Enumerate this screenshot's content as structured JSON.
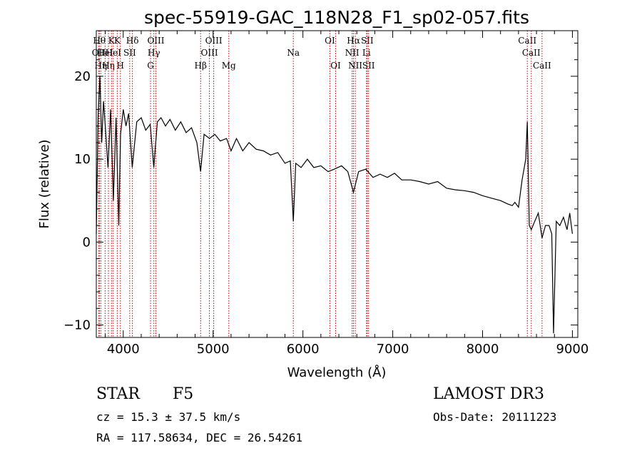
{
  "chart_data": {
    "type": "line",
    "title": "spec-55919-GAC_118N28_F1_sp02-057.fits",
    "xlabel": "Wavelength (Å)",
    "ylabel": "Flux (relative)",
    "xlim": [
      3700,
      9060
    ],
    "ylim": [
      -11.5,
      25.5
    ],
    "xticks": [
      4000,
      5000,
      6000,
      7000,
      8000,
      9000
    ],
    "xtick_labels": [
      "4000",
      "5000",
      "6000",
      "7000",
      "8000",
      "9000"
    ],
    "yticks": [
      -10,
      0,
      10,
      20
    ],
    "ytick_labels": [
      "−10",
      "0",
      "10",
      "20"
    ],
    "series": [
      {
        "name": "spectrum",
        "x": [
          3700,
          3720,
          3740,
          3760,
          3780,
          3800,
          3830,
          3860,
          3890,
          3920,
          3950,
          3970,
          4000,
          4030,
          4060,
          4100,
          4150,
          4200,
          4250,
          4300,
          4340,
          4380,
          4420,
          4470,
          4520,
          4580,
          4640,
          4700,
          4760,
          4820,
          4861,
          4900,
          4960,
          5020,
          5080,
          5150,
          5200,
          5260,
          5330,
          5400,
          5480,
          5560,
          5640,
          5720,
          5800,
          5860,
          5893,
          5920,
          5980,
          6050,
          6120,
          6200,
          6280,
          6350,
          6430,
          6500,
          6563,
          6620,
          6700,
          6780,
          6860,
          6940,
          7020,
          7100,
          7200,
          7300,
          7400,
          7500,
          7600,
          7700,
          7800,
          7900,
          8000,
          8100,
          8200,
          8280,
          8330,
          8360,
          8400,
          8440,
          8480,
          8498,
          8520,
          8542,
          8580,
          8620,
          8662,
          8700,
          8740,
          8770,
          8790,
          8820,
          8860,
          8900,
          8940,
          8970,
          9000
        ],
        "y": [
          1.0,
          15.0,
          20.0,
          12.0,
          17.0,
          14.0,
          9.0,
          16.0,
          5.0,
          15.0,
          2.0,
          13.0,
          16.0,
          14.0,
          15.5,
          9.0,
          14.5,
          15.0,
          13.5,
          14.2,
          9.0,
          14.5,
          15.0,
          14.0,
          14.8,
          13.5,
          14.5,
          13.2,
          13.8,
          12.0,
          8.5,
          13.0,
          12.5,
          13.0,
          12.2,
          12.5,
          11.0,
          12.5,
          11.0,
          12.0,
          11.2,
          11.0,
          10.5,
          10.8,
          9.5,
          9.8,
          2.5,
          9.5,
          9.0,
          10.0,
          9.0,
          9.2,
          8.5,
          8.8,
          9.2,
          8.5,
          6.0,
          8.5,
          8.8,
          7.8,
          8.2,
          7.8,
          8.3,
          7.5,
          7.5,
          7.3,
          7.0,
          7.3,
          6.5,
          6.3,
          6.2,
          6.0,
          5.6,
          5.3,
          5.0,
          4.6,
          4.4,
          4.8,
          4.2,
          7.5,
          10.0,
          14.5,
          2.0,
          1.5,
          2.5,
          3.5,
          0.5,
          2.0,
          2.0,
          1.0,
          -11.0,
          2.5,
          2.0,
          3.0,
          1.5,
          3.5,
          1.0
        ]
      }
    ],
    "spectral_lines": [
      {
        "x": 3727,
        "label": "OII",
        "row": 2
      },
      {
        "x": 3734,
        "label": "Hθ",
        "row": 1
      },
      {
        "x": 3750,
        "label": "Hη",
        "row": 3
      },
      {
        "x": 3798,
        "label": "HeI",
        "row": 2
      },
      {
        "x": 3835,
        "label": "Hη",
        "row": 3
      },
      {
        "x": 3869,
        "label": "K",
        "row": 1
      },
      {
        "x": 3889,
        "label": "HeI",
        "row": 2
      },
      {
        "x": 3933,
        "label": "K",
        "row": 1
      },
      {
        "x": 3968,
        "label": "H",
        "row": 3
      },
      {
        "x": 4072,
        "label": "SII",
        "row": 2
      },
      {
        "x": 4102,
        "label": "Hδ",
        "row": 1
      },
      {
        "x": 4304,
        "label": "G",
        "row": 3
      },
      {
        "x": 4341,
        "label": "Hγ",
        "row": 2
      },
      {
        "x": 4363,
        "label": "OIII",
        "row": 1
      },
      {
        "x": 4861,
        "label": "Hβ",
        "row": 3
      },
      {
        "x": 4959,
        "label": "OIII",
        "row": 2
      },
      {
        "x": 5007,
        "label": "OIII",
        "row": 1
      },
      {
        "x": 5175,
        "label": "Mg",
        "row": 3
      },
      {
        "x": 5893,
        "label": "Na",
        "row": 2
      },
      {
        "x": 6300,
        "label": "OI",
        "row": 1
      },
      {
        "x": 6364,
        "label": "OI",
        "row": 3
      },
      {
        "x": 6548,
        "label": "NII",
        "row": 2
      },
      {
        "x": 6563,
        "label": "Hα",
        "row": 1
      },
      {
        "x": 6583,
        "label": "NII",
        "row": 3
      },
      {
        "x": 6708,
        "label": "Li",
        "row": 2
      },
      {
        "x": 6716,
        "label": "SII",
        "row": 1
      },
      {
        "x": 6731,
        "label": "SII",
        "row": 3
      },
      {
        "x": 8498,
        "label": "CaII",
        "row": 1
      },
      {
        "x": 8542,
        "label": "CaII",
        "row": 2
      },
      {
        "x": 8662,
        "label": "CaII",
        "row": 3
      }
    ]
  },
  "info": {
    "class": "STAR",
    "subclass": "F5",
    "survey": "LAMOST DR3",
    "cz": "cz = 15.3 ± 37.5 km/s",
    "obs_date": "Obs-Date: 20111223",
    "coords": "RA = 117.58634, DEC =  26.54261"
  }
}
